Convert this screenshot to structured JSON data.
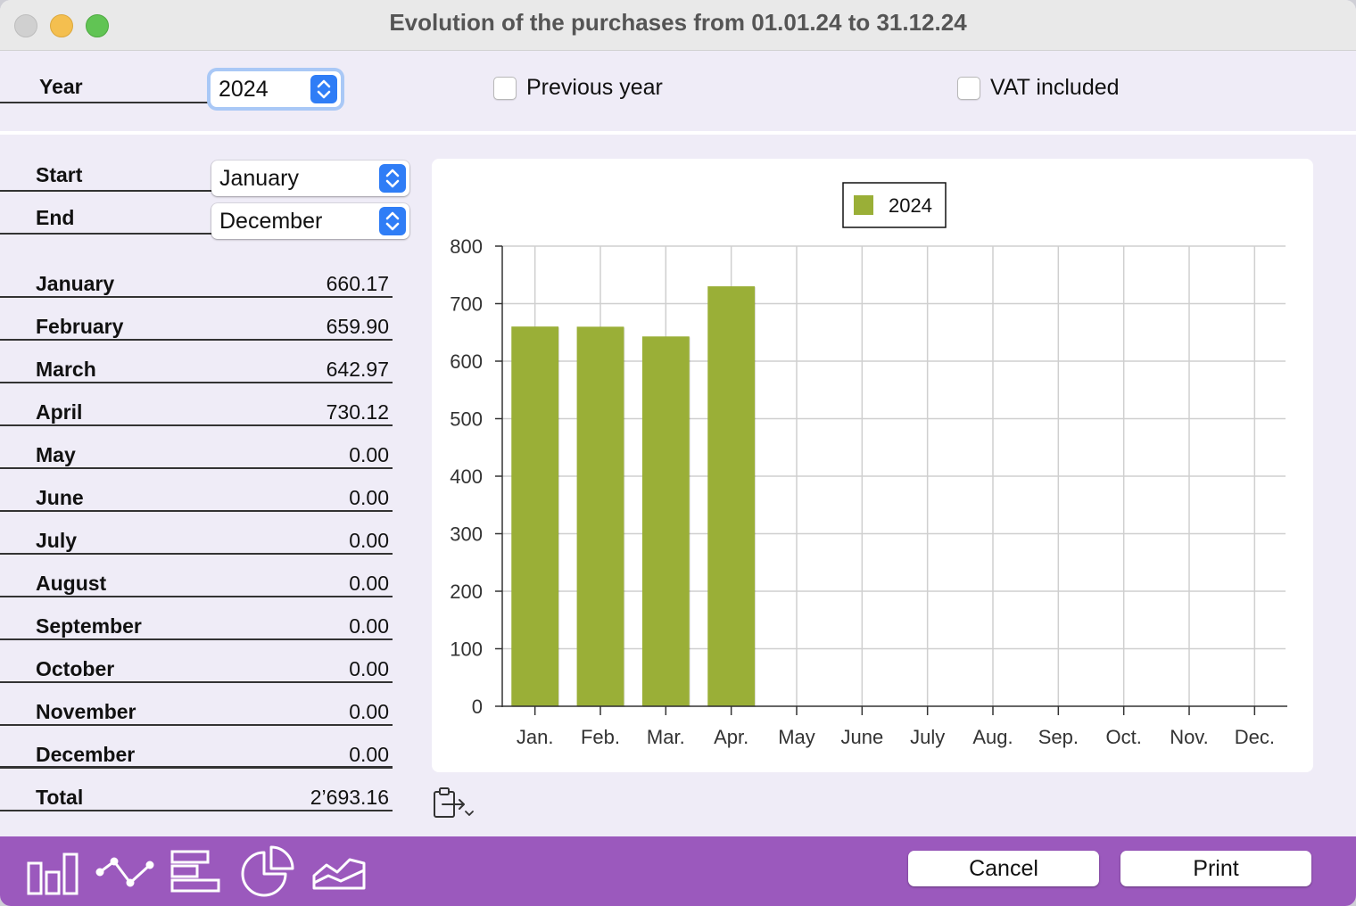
{
  "window": {
    "title": "Evolution of the purchases from 01.01.24 to 31.12.24"
  },
  "filters": {
    "year_label": "Year",
    "year_value": "2024",
    "previous_year_label": "Previous year",
    "previous_year_checked": false,
    "vat_included_label": "VAT included",
    "vat_included_checked": false,
    "start_label": "Start",
    "start_value": "January",
    "end_label": "End",
    "end_value": "December"
  },
  "months": [
    {
      "name": "January",
      "value": "660.17"
    },
    {
      "name": "February",
      "value": "659.90"
    },
    {
      "name": "March",
      "value": "642.97"
    },
    {
      "name": "April",
      "value": "730.12"
    },
    {
      "name": "May",
      "value": "0.00"
    },
    {
      "name": "June",
      "value": "0.00"
    },
    {
      "name": "July",
      "value": "0.00"
    },
    {
      "name": "August",
      "value": "0.00"
    },
    {
      "name": "September",
      "value": "0.00"
    },
    {
      "name": "October",
      "value": "0.00"
    },
    {
      "name": "November",
      "value": "0.00"
    },
    {
      "name": "December",
      "value": "0.00"
    }
  ],
  "total": {
    "label": "Total",
    "value": "2’693.16"
  },
  "chart_data": {
    "type": "bar",
    "categories": [
      "Jan.",
      "Feb.",
      "Mar.",
      "Apr.",
      "May",
      "June",
      "July",
      "Aug.",
      "Sep.",
      "Oct.",
      "Nov.",
      "Dec."
    ],
    "series": [
      {
        "name": "2024",
        "color": "#9aaf37",
        "values": [
          660.17,
          659.9,
          642.97,
          730.12,
          0,
          0,
          0,
          0,
          0,
          0,
          0,
          0
        ]
      }
    ],
    "ylim": [
      0,
      800
    ],
    "yticks": [
      0,
      100,
      200,
      300,
      400,
      500,
      600,
      700,
      800
    ],
    "grid": true,
    "legend": "top-center"
  },
  "toolbar": {
    "icons": [
      "bar-chart-icon",
      "line-chart-icon",
      "horizontal-bar-chart-icon",
      "pie-chart-icon",
      "area-chart-icon"
    ],
    "copy_icon": "clipboard-export-icon"
  },
  "buttons": {
    "cancel": "Cancel",
    "print": "Print"
  },
  "colors": {
    "accent": "#9b59bd",
    "bar": "#9aaf37",
    "select_blue": "#2f7df6"
  }
}
